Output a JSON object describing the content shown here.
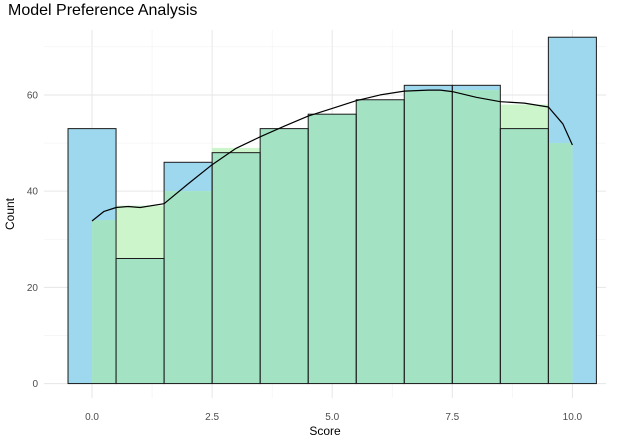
{
  "chart_data": {
    "type": "bar",
    "title": "Model Preference Analysis",
    "xlabel": "Score",
    "ylabel": "Count",
    "xlim": [
      -1.0,
      10.7
    ],
    "ylim": [
      -3,
      73.5
    ],
    "xticks": [
      "0.0",
      "2.5",
      "5.0",
      "7.5",
      "10.0"
    ],
    "yticks": [
      "0",
      "20",
      "40",
      "60"
    ],
    "bins": [
      [
        -0.5,
        0.5
      ],
      [
        0.5,
        1.5
      ],
      [
        1.5,
        2.5
      ],
      [
        2.5,
        3.5
      ],
      [
        3.5,
        4.5
      ],
      [
        4.5,
        5.5
      ],
      [
        5.5,
        6.5
      ],
      [
        6.5,
        7.5
      ],
      [
        7.5,
        8.5
      ],
      [
        8.5,
        9.5
      ],
      [
        9.5,
        10.5
      ]
    ],
    "series": [
      {
        "values": [
          53,
          26,
          46,
          48,
          53,
          56,
          59,
          62,
          62,
          53,
          72
        ],
        "color": "#9dd8ef"
      },
      {
        "values": [
          34,
          37,
          40,
          49,
          53,
          56,
          59,
          61,
          61,
          58,
          50
        ],
        "color": "#ccf5cc"
      }
    ],
    "density_curve": {
      "x": [
        0.0,
        0.25,
        0.5,
        0.75,
        1.0,
        1.5,
        2.0,
        2.5,
        3.0,
        3.5,
        4.0,
        4.5,
        5.0,
        5.5,
        6.0,
        6.5,
        7.0,
        7.25,
        7.5,
        8.0,
        8.5,
        9.0,
        9.5,
        9.8,
        10.0
      ],
      "y": [
        33.8,
        35.8,
        36.6,
        36.8,
        36.6,
        37.4,
        41.5,
        45.5,
        48.9,
        51.3,
        53.5,
        55.6,
        57.2,
        58.8,
        60.0,
        60.8,
        61.0,
        61.0,
        60.7,
        59.5,
        58.6,
        58.3,
        57.5,
        54.0,
        49.6
      ],
      "color": "#000000"
    },
    "overlap_color": "#a3e3c4",
    "grid": true
  }
}
